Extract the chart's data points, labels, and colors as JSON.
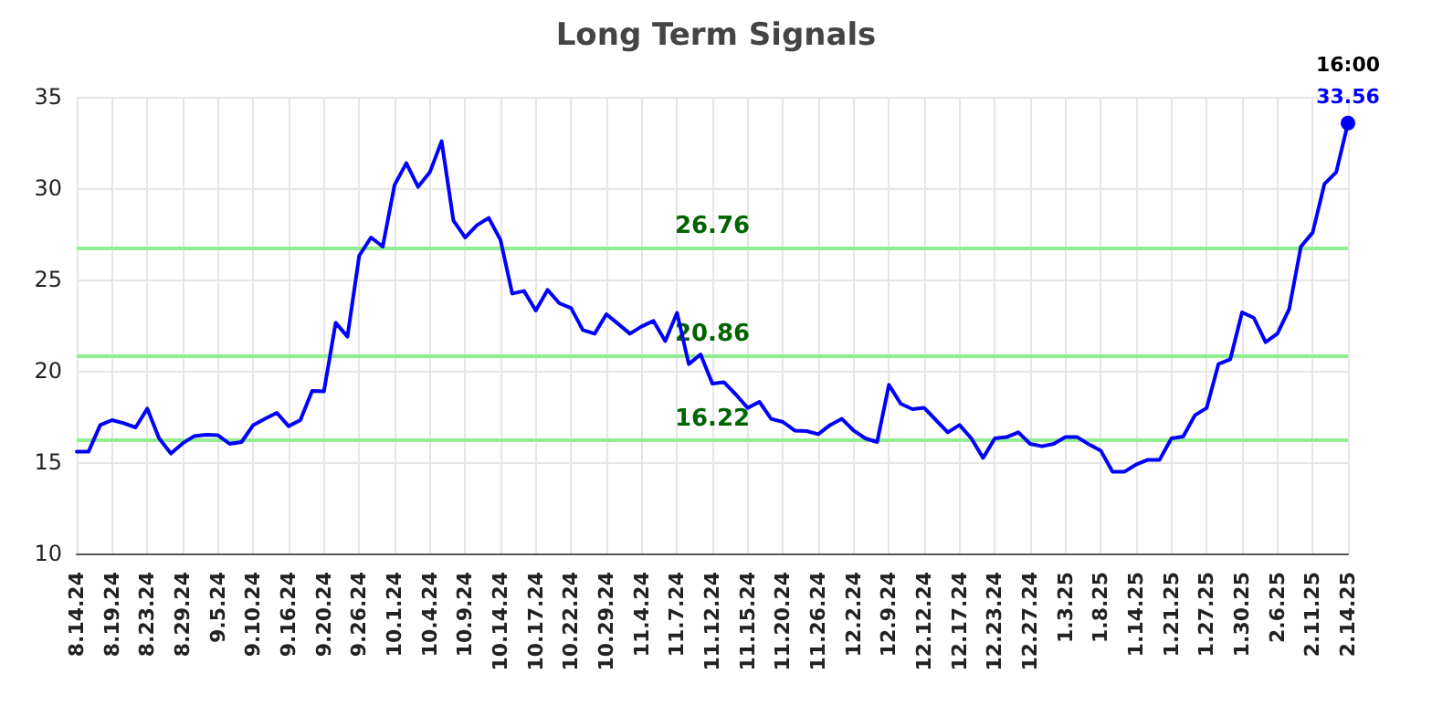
{
  "chart_data": {
    "type": "line",
    "title": "Long Term Signals",
    "categories": [
      "8.14.24",
      null,
      null,
      "8.19.24",
      null,
      null,
      "8.23.24",
      null,
      null,
      "8.29.24",
      null,
      null,
      "9.5.24",
      null,
      null,
      "9.10.24",
      null,
      null,
      "9.16.24",
      null,
      null,
      "9.20.24",
      null,
      null,
      "9.26.24",
      null,
      null,
      "10.1.24",
      null,
      null,
      "10.4.24",
      null,
      null,
      "10.9.24",
      null,
      null,
      "10.14.24",
      null,
      null,
      "10.17.24",
      null,
      null,
      "10.22.24",
      null,
      null,
      "10.29.24",
      null,
      null,
      "11.4.24",
      null,
      null,
      "11.7.24",
      null,
      null,
      "11.12.24",
      null,
      null,
      "11.15.24",
      null,
      null,
      "11.20.24",
      null,
      null,
      "11.26.24",
      null,
      null,
      "12.2.24",
      null,
      null,
      "12.9.24",
      null,
      null,
      "12.12.24",
      null,
      null,
      "12.17.24",
      null,
      null,
      "12.23.24",
      null,
      null,
      "12.27.24",
      null,
      null,
      "1.3.25",
      null,
      null,
      "1.8.25",
      null,
      null,
      "1.14.25",
      null,
      null,
      "1.21.25",
      null,
      null,
      "1.27.25",
      null,
      null,
      "1.30.25",
      null,
      null,
      "2.6.25",
      null,
      null,
      "2.11.25",
      null,
      null,
      "2.14.25"
    ],
    "series": [
      {
        "color": "#0000ff",
        "values": [
          15.57,
          15.57,
          17.03,
          17.3,
          17.13,
          16.9,
          17.93,
          16.3,
          15.47,
          16.03,
          16.43,
          16.5,
          16.47,
          16.0,
          16.1,
          17.03,
          17.37,
          17.7,
          16.97,
          17.3,
          18.9,
          18.87,
          22.63,
          21.87,
          26.3,
          27.3,
          26.8,
          30.17,
          31.37,
          30.07,
          30.87,
          32.57,
          28.23,
          27.3,
          27.97,
          28.37,
          27.17,
          24.23,
          24.37,
          23.3,
          24.43,
          23.7,
          23.43,
          22.23,
          22.03,
          23.1,
          22.57,
          22.03,
          22.43,
          22.73,
          21.63,
          23.17,
          20.37,
          20.9,
          19.3,
          19.37,
          18.7,
          17.97,
          18.3,
          17.37,
          17.2,
          16.73,
          16.7,
          16.53,
          17.03,
          17.37,
          16.73,
          16.3,
          16.1,
          19.23,
          18.2,
          17.9,
          17.97,
          17.3,
          16.63,
          17.03,
          16.3,
          15.23,
          16.3,
          16.37,
          16.63,
          16.0,
          15.87,
          16.0,
          16.37,
          16.37,
          15.97,
          15.63,
          14.47,
          14.47,
          14.87,
          15.13,
          15.13,
          16.3,
          16.4,
          17.57,
          17.97,
          20.37,
          20.63,
          23.2,
          22.9,
          21.57,
          22.03,
          23.37,
          26.8,
          27.57,
          30.23,
          30.87,
          33.56
        ],
        "value_labels": [
          null,
          null,
          null,
          null,
          null,
          null,
          null,
          null,
          null,
          null,
          null,
          null,
          null,
          null,
          null,
          null,
          null,
          null,
          null,
          null,
          null,
          null,
          null,
          null,
          null,
          null,
          null,
          null,
          null,
          null,
          null,
          null,
          null,
          null,
          null,
          null,
          null,
          null,
          null,
          null,
          null,
          null,
          null,
          null,
          null,
          null,
          null,
          null,
          null,
          null,
          null,
          null,
          null,
          null,
          null,
          null,
          null,
          null,
          null,
          null,
          null,
          null,
          null,
          null,
          null,
          null,
          null,
          null,
          null,
          null,
          null,
          null,
          null,
          null,
          null,
          null,
          null,
          null,
          null,
          null,
          null,
          null,
          null,
          null,
          null,
          null,
          null,
          null,
          null,
          null,
          null,
          null,
          null,
          null,
          null,
          null,
          null,
          null,
          null,
          null,
          null,
          null,
          null,
          null,
          null,
          null,
          null,
          null,
          "33.56"
        ]
      }
    ],
    "annotations": [
      {
        "text": "16:00",
        "x": "2.14.25",
        "y": 33.56
      }
    ],
    "ref_lines": [
      {
        "axis": "y",
        "value": 26.76,
        "label": "26.76",
        "color": "#90ee90"
      },
      {
        "axis": "y",
        "value": 20.86,
        "label": "20.86",
        "color": "#90ee90"
      },
      {
        "axis": "y",
        "value": 16.22,
        "label": "16.22",
        "color": "#90ee90"
      }
    ],
    "ylim": [
      10,
      35
    ],
    "yticks": [
      10,
      15,
      20,
      25,
      30,
      35
    ],
    "grid": true,
    "line_style": "solid"
  }
}
